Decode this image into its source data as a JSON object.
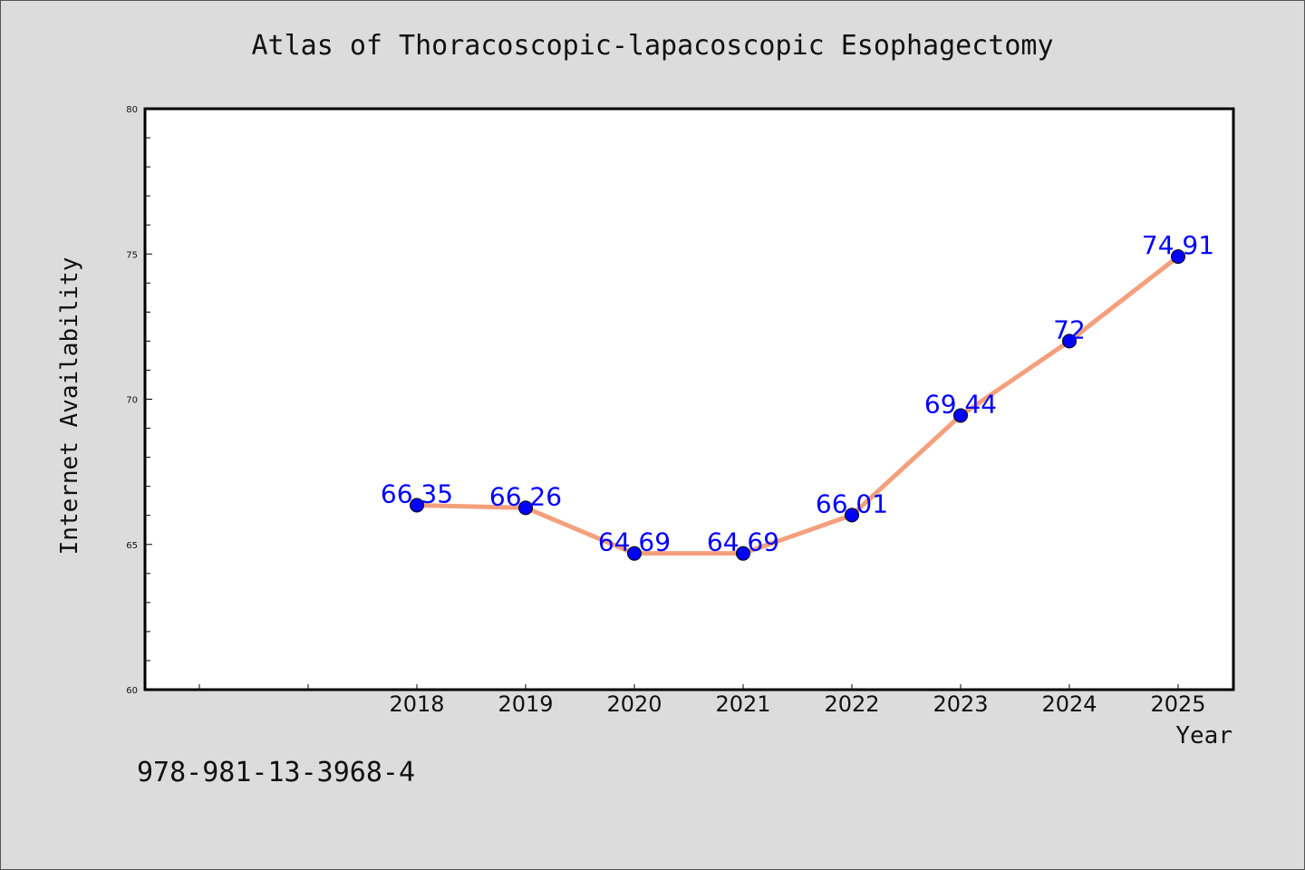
{
  "colors": {
    "background": "#dcdcdc",
    "plot_area": "#ffffff",
    "line": "#f4a07c",
    "marker": "#0000ff",
    "data_label": "#0000ff"
  },
  "footer": {
    "isbn": "978-981-13-3968-4"
  },
  "chart_data": {
    "type": "line",
    "title": "Atlas of Thoracoscopic-lapacoscopic Esophagectomy",
    "xlabel": "Year",
    "ylabel": "Internet Availability",
    "categories": [
      "2018",
      "2019",
      "2020",
      "2021",
      "2022",
      "2023",
      "2024",
      "2025"
    ],
    "series": [
      {
        "values": [
          66.35,
          66.26,
          64.69,
          64.69,
          66.01,
          69.44,
          72,
          74.91
        ],
        "labels": [
          "66.35",
          "66.26",
          "64.69",
          "64.69",
          "66.01",
          "69.44",
          "72",
          "74.91"
        ]
      }
    ],
    "ylim": [
      60,
      80
    ],
    "yticks": [
      "60",
      "65",
      "70",
      "75",
      "80"
    ],
    "grid": false,
    "legend": "none"
  }
}
